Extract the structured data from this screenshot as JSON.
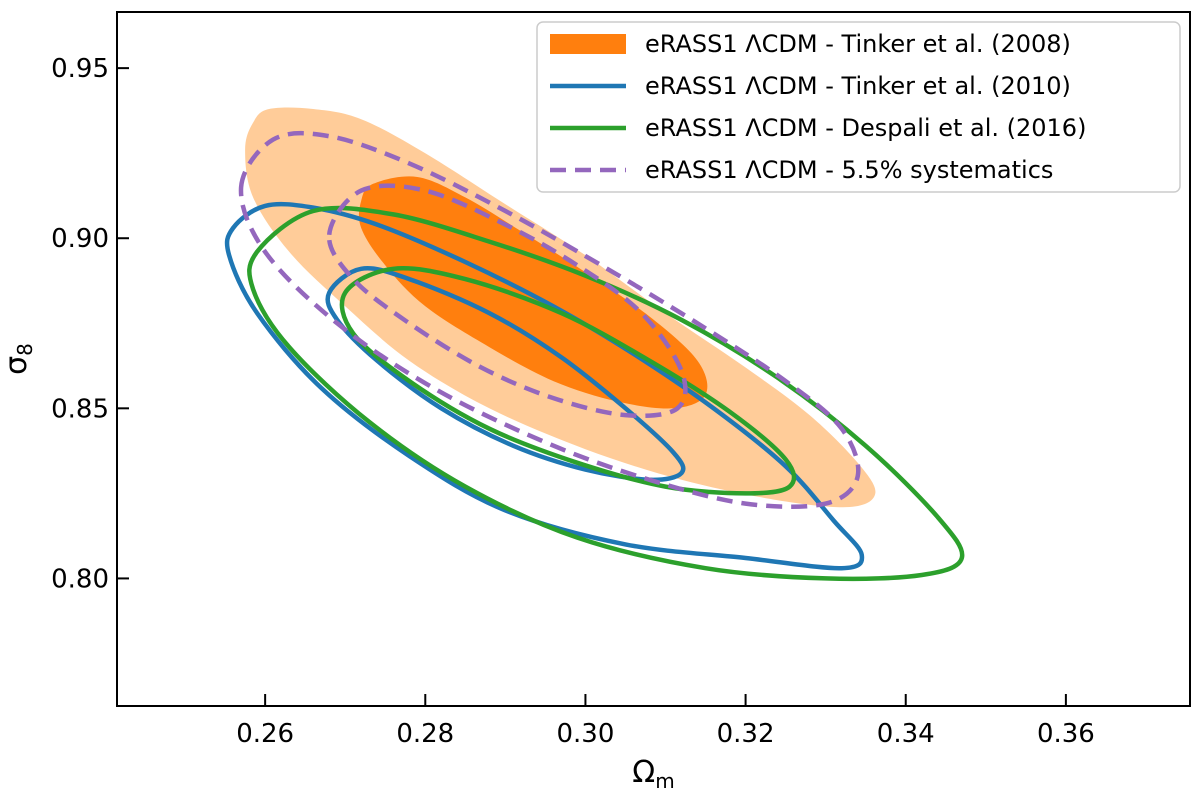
{
  "chart_data": {
    "type": "contour",
    "title": "",
    "xlabel": "Ω",
    "xlabel_sub": "m",
    "ylabel": "σ",
    "ylabel_sub": "8",
    "xlim": [
      0.2415,
      0.3755
    ],
    "ylim": [
      0.7625,
      0.9665
    ],
    "xticks": [
      0.26,
      0.28,
      0.3,
      0.32,
      0.34,
      0.36
    ],
    "xtick_labels": [
      "0.26",
      "0.28",
      "0.30",
      "0.32",
      "0.34",
      "0.36"
    ],
    "yticks": [
      0.8,
      0.85,
      0.9,
      0.95
    ],
    "ytick_labels": [
      "0.80",
      "0.85",
      "0.90",
      "0.95"
    ],
    "grid": false,
    "legend_position": "top-right",
    "series": [
      {
        "name": "eRASS1 ΛCDM - Tinker et al. (2008)",
        "style": "filled",
        "color": "#ff7f0e",
        "contours": [
          {
            "level": "95%",
            "color": "#ffcc99",
            "points": [
              [
                0.2605,
                0.938
              ],
              [
                0.266,
                0.938
              ],
              [
                0.272,
                0.935
              ],
              [
                0.28,
                0.925
              ],
              [
                0.29,
                0.91
              ],
              [
                0.3,
                0.895
              ],
              [
                0.31,
                0.878
              ],
              [
                0.32,
                0.862
              ],
              [
                0.328,
                0.848
              ],
              [
                0.334,
                0.834
              ],
              [
                0.3362,
                0.825
              ],
              [
                0.333,
                0.821
              ],
              [
                0.324,
                0.823
              ],
              [
                0.312,
                0.829
              ],
              [
                0.3,
                0.838
              ],
              [
                0.288,
                0.85
              ],
              [
                0.278,
                0.864
              ],
              [
                0.27,
                0.88
              ],
              [
                0.263,
                0.896
              ],
              [
                0.2585,
                0.912
              ],
              [
                0.2575,
                0.926
              ],
              [
                0.2585,
                0.934
              ]
            ]
          },
          {
            "level": "68%",
            "color": "#ff7f0e",
            "points": [
              [
                0.2735,
                0.916
              ],
              [
                0.279,
                0.918
              ],
              [
                0.285,
                0.912
              ],
              [
                0.292,
                0.902
              ],
              [
                0.3,
                0.89
              ],
              [
                0.308,
                0.877
              ],
              [
                0.314,
                0.864
              ],
              [
                0.315,
                0.854
              ],
              [
                0.311,
                0.85
              ],
              [
                0.304,
                0.852
              ],
              [
                0.296,
                0.858
              ],
              [
                0.288,
                0.868
              ],
              [
                0.28,
                0.88
              ],
              [
                0.275,
                0.892
              ],
              [
                0.272,
                0.903
              ],
              [
                0.272,
                0.911
              ]
            ]
          }
        ]
      },
      {
        "name": "eRASS1 ΛCDM - Tinker et al. (2010)",
        "style": "line",
        "color": "#1f77b4",
        "contours": [
          {
            "level": "95%",
            "points": [
              [
                0.256,
                0.903
              ],
              [
                0.26,
                0.9095
              ],
              [
                0.266,
                0.909
              ],
              [
                0.274,
                0.904
              ],
              [
                0.285,
                0.893
              ],
              [
                0.296,
                0.88
              ],
              [
                0.306,
                0.866
              ],
              [
                0.316,
                0.85
              ],
              [
                0.325,
                0.833
              ],
              [
                0.331,
                0.817
              ],
              [
                0.3345,
                0.807
              ],
              [
                0.332,
                0.803
              ],
              [
                0.32,
                0.806
              ],
              [
                0.305,
                0.81
              ],
              [
                0.29,
                0.82
              ],
              [
                0.278,
                0.836
              ],
              [
                0.267,
                0.856
              ],
              [
                0.259,
                0.878
              ],
              [
                0.2555,
                0.895
              ]
            ]
          },
          {
            "level": "68%",
            "points": [
              [
                0.268,
                0.884
              ],
              [
                0.272,
                0.891
              ],
              [
                0.278,
                0.888
              ],
              [
                0.288,
                0.878
              ],
              [
                0.297,
                0.865
              ],
              [
                0.305,
                0.85
              ],
              [
                0.311,
                0.837
              ],
              [
                0.312,
                0.831
              ],
              [
                0.308,
                0.829
              ],
              [
                0.3,
                0.832
              ],
              [
                0.291,
                0.839
              ],
              [
                0.282,
                0.85
              ],
              [
                0.274,
                0.864
              ],
              [
                0.269,
                0.876
              ]
            ]
          }
        ]
      },
      {
        "name": "eRASS1 ΛCDM - Despali et al. (2016)",
        "style": "line",
        "color": "#2ca02c",
        "contours": [
          {
            "level": "95%",
            "points": [
              [
                0.259,
                0.896
              ],
              [
                0.266,
                0.908
              ],
              [
                0.276,
                0.907
              ],
              [
                0.288,
                0.899
              ],
              [
                0.3,
                0.889
              ],
              [
                0.312,
                0.876
              ],
              [
                0.324,
                0.859
              ],
              [
                0.335,
                0.839
              ],
              [
                0.344,
                0.818
              ],
              [
                0.347,
                0.806
              ],
              [
                0.342,
                0.801
              ],
              [
                0.33,
                0.8
              ],
              [
                0.315,
                0.803
              ],
              [
                0.299,
                0.812
              ],
              [
                0.285,
                0.827
              ],
              [
                0.273,
                0.846
              ],
              [
                0.263,
                0.868
              ],
              [
                0.2585,
                0.885
              ]
            ]
          },
          {
            "level": "68%",
            "points": [
              [
                0.27,
                0.884
              ],
              [
                0.276,
                0.891
              ],
              [
                0.285,
                0.888
              ],
              [
                0.297,
                0.878
              ],
              [
                0.308,
                0.864
              ],
              [
                0.318,
                0.849
              ],
              [
                0.325,
                0.835
              ],
              [
                0.3255,
                0.827
              ],
              [
                0.32,
                0.825
              ],
              [
                0.31,
                0.827
              ],
              [
                0.299,
                0.834
              ],
              [
                0.288,
                0.844
              ],
              [
                0.278,
                0.858
              ],
              [
                0.271,
                0.872
              ]
            ]
          }
        ]
      },
      {
        "name": "eRASS1 ΛCDM - 5.5% systematics",
        "style": "dashed",
        "color": "#9467bd",
        "contours": [
          {
            "level": "95%",
            "points": [
              [
                0.257,
                0.915
              ],
              [
                0.261,
                0.929
              ],
              [
                0.268,
                0.93
              ],
              [
                0.278,
                0.922
              ],
              [
                0.29,
                0.908
              ],
              [
                0.302,
                0.892
              ],
              [
                0.314,
                0.875
              ],
              [
                0.325,
                0.858
              ],
              [
                0.332,
                0.844
              ],
              [
                0.334,
                0.83
              ],
              [
                0.33,
                0.822
              ],
              [
                0.32,
                0.822
              ],
              [
                0.308,
                0.829
              ],
              [
                0.295,
                0.84
              ],
              [
                0.281,
                0.856
              ],
              [
                0.269,
                0.875
              ],
              [
                0.26,
                0.896
              ]
            ]
          },
          {
            "level": "68%",
            "points": [
              [
                0.268,
                0.901
              ],
              [
                0.272,
                0.914
              ],
              [
                0.28,
                0.914
              ],
              [
                0.29,
                0.904
              ],
              [
                0.299,
                0.892
              ],
              [
                0.307,
                0.878
              ],
              [
                0.312,
                0.861
              ],
              [
                0.3115,
                0.85
              ],
              [
                0.305,
                0.848
              ],
              [
                0.296,
                0.853
              ],
              [
                0.287,
                0.862
              ],
              [
                0.278,
                0.875
              ],
              [
                0.271,
                0.888
              ]
            ]
          }
        ]
      }
    ]
  }
}
